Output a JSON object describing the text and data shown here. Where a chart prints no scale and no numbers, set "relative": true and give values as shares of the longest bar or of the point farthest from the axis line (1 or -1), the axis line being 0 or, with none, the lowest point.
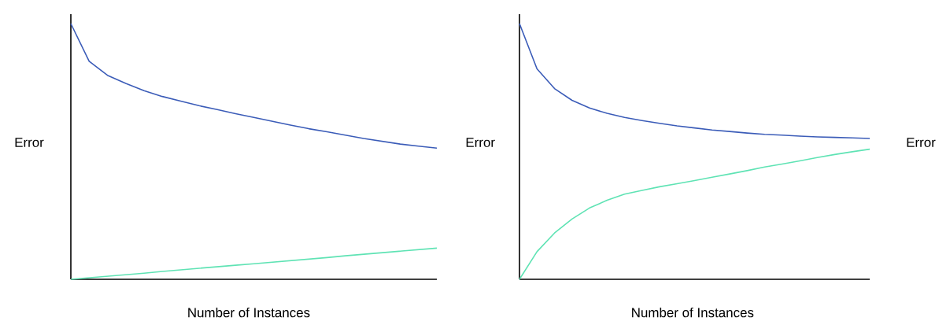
{
  "chart_data": [
    {
      "type": "line",
      "relative": true,
      "xlabel": "Number of Instances",
      "ylabel": "Error",
      "categories": [
        null,
        null,
        null,
        null,
        null,
        null,
        null,
        null,
        null,
        null,
        null,
        null,
        null,
        null,
        null,
        null,
        null,
        null,
        null,
        null,
        null
      ],
      "series": [
        {
          "color": "#3b5cb8",
          "values": [
            1.0,
            0.853,
            0.798,
            0.766,
            0.738,
            0.715,
            0.697,
            0.679,
            0.664,
            0.648,
            0.633,
            0.618,
            0.603,
            0.589,
            0.577,
            0.564,
            0.551,
            0.54,
            0.529,
            0.521,
            0.513
          ]
        },
        {
          "color": "#5fe3b4",
          "values": [
            0.0,
            0.006,
            0.012,
            0.018,
            0.024,
            0.031,
            0.037,
            0.043,
            0.049,
            0.055,
            0.061,
            0.067,
            0.073,
            0.079,
            0.085,
            0.092,
            0.098,
            0.104,
            0.11,
            0.116,
            0.122
          ]
        }
      ]
    },
    {
      "type": "line",
      "relative": true,
      "xlabel": "Number of Instances",
      "ylabel": "Error",
      "y2label": "Error",
      "categories": [
        null,
        null,
        null,
        null,
        null,
        null,
        null,
        null,
        null,
        null,
        null,
        null,
        null,
        null,
        null,
        null,
        null,
        null,
        null,
        null,
        null
      ],
      "series": [
        {
          "color": "#3b5cb8",
          "values": [
            1.0,
            0.823,
            0.746,
            0.7,
            0.67,
            0.649,
            0.633,
            0.621,
            0.61,
            0.6,
            0.592,
            0.584,
            0.578,
            0.572,
            0.567,
            0.564,
            0.56,
            0.557,
            0.555,
            0.553,
            0.551
          ]
        },
        {
          "color": "#5fe3b4",
          "values": [
            0.0,
            0.108,
            0.181,
            0.236,
            0.279,
            0.309,
            0.333,
            0.348,
            0.362,
            0.374,
            0.386,
            0.399,
            0.412,
            0.425,
            0.439,
            0.451,
            0.463,
            0.476,
            0.488,
            0.499,
            0.509
          ]
        }
      ]
    }
  ]
}
